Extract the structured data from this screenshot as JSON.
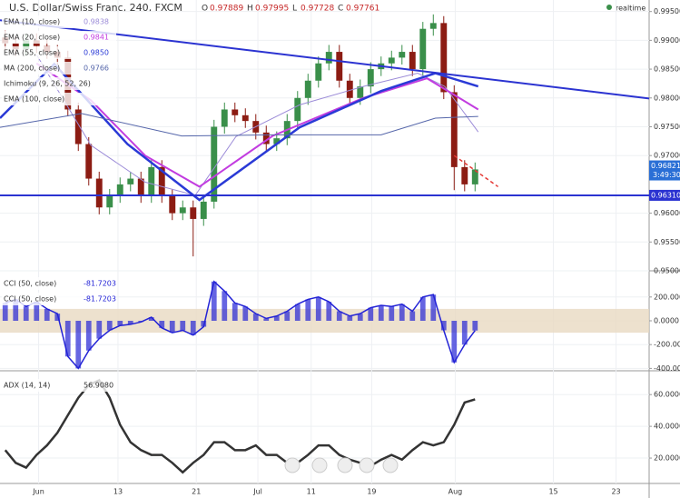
{
  "chart_data": [
    {
      "type": "candlestick",
      "title": "U.S. Dollar/Swiss Franc, 240, FXCM",
      "ohlc": [
        {
          "label": "O",
          "value": 0.97889
        },
        {
          "label": "H",
          "value": 0.97995
        },
        {
          "label": "L",
          "value": 0.97728
        },
        {
          "label": "C",
          "value": 0.97761
        }
      ],
      "realtime": "realtime",
      "up_color": "#3a8f4a",
      "down_color": "#8c1c13",
      "x": [
        0,
        1,
        2,
        3,
        4,
        5,
        6,
        7,
        8,
        9,
        10,
        11,
        12,
        13,
        14,
        15,
        16,
        17,
        18,
        19,
        20,
        21,
        22,
        23,
        24,
        25,
        26,
        27,
        28,
        29,
        30,
        31,
        32,
        33,
        34,
        35,
        36,
        37,
        38,
        39,
        40,
        41,
        42,
        43,
        44,
        45
      ],
      "open": [
        0.9905,
        0.9895,
        0.9885,
        0.99,
        0.989,
        0.988,
        0.987,
        0.978,
        0.972,
        0.966,
        0.961,
        0.963,
        0.965,
        0.966,
        0.963,
        0.968,
        0.963,
        0.96,
        0.961,
        0.959,
        0.962,
        0.975,
        0.978,
        0.977,
        0.976,
        0.974,
        0.972,
        0.973,
        0.976,
        0.98,
        0.983,
        0.986,
        0.988,
        0.983,
        0.98,
        0.982,
        0.985,
        0.986,
        0.987,
        0.988,
        0.985,
        0.992,
        0.993,
        0.981,
        0.968,
        0.965
      ],
      "high": [
        0.9917,
        0.9907,
        0.9912,
        0.9912,
        0.9902,
        0.9892,
        0.9882,
        0.9792,
        0.9732,
        0.9672,
        0.9642,
        0.9662,
        0.9672,
        0.9672,
        0.9692,
        0.9692,
        0.9642,
        0.9622,
        0.9622,
        0.9632,
        0.9762,
        0.9792,
        0.9792,
        0.9782,
        0.9772,
        0.9752,
        0.9742,
        0.9772,
        0.9812,
        0.9842,
        0.9872,
        0.9892,
        0.9892,
        0.9842,
        0.9832,
        0.9862,
        0.9872,
        0.9882,
        0.9892,
        0.9892,
        0.9932,
        0.9945,
        0.9942,
        0.9822,
        0.9692,
        0.9688
      ],
      "low": [
        0.9883,
        0.9873,
        0.9873,
        0.9878,
        0.9868,
        0.9858,
        0.9768,
        0.9708,
        0.9648,
        0.9598,
        0.9598,
        0.9618,
        0.9638,
        0.9618,
        0.9618,
        0.9618,
        0.9588,
        0.9588,
        0.9525,
        0.9578,
        0.9608,
        0.9738,
        0.9758,
        0.9748,
        0.9728,
        0.9708,
        0.9708,
        0.9718,
        0.9748,
        0.9788,
        0.9818,
        0.9848,
        0.9818,
        0.9788,
        0.9788,
        0.9808,
        0.9838,
        0.9848,
        0.9858,
        0.9838,
        0.9838,
        0.9908,
        0.9798,
        0.964,
        0.9638,
        0.9638
      ],
      "close": [
        0.9895,
        0.9885,
        0.99,
        0.989,
        0.988,
        0.987,
        0.978,
        0.972,
        0.966,
        0.961,
        0.963,
        0.965,
        0.966,
        0.963,
        0.968,
        0.963,
        0.96,
        0.961,
        0.959,
        0.962,
        0.975,
        0.978,
        0.977,
        0.976,
        0.974,
        0.972,
        0.973,
        0.976,
        0.98,
        0.983,
        0.986,
        0.988,
        0.983,
        0.98,
        0.982,
        0.985,
        0.986,
        0.987,
        0.988,
        0.985,
        0.992,
        0.993,
        0.981,
        0.968,
        0.965,
        0.9676
      ],
      "series": [
        {
          "name": "EMA (10, close)",
          "reading": "0.9838",
          "color": "#9c8cd8",
          "width": 1,
          "x": [
            3,
            8.2,
            13.4,
            18.2,
            22.1,
            28.2,
            34.3,
            39.5,
            42.1,
            45.3
          ],
          "values": [
            0.9875,
            0.9718,
            0.9654,
            0.9631,
            0.9733,
            0.9788,
            0.982,
            0.9843,
            0.982,
            0.9741
          ]
        },
        {
          "name": "EMA (20, close)",
          "reading": "0.9841",
          "color": "#c23ce0",
          "width": 2,
          "x": [
            3,
            8.2,
            13.4,
            18.6,
            25.6,
            34.3,
            40.4,
            45.3
          ],
          "values": [
            0.986,
            0.9796,
            0.97,
            0.9646,
            0.9734,
            0.98,
            0.9834,
            0.978
          ]
        },
        {
          "name": "EMA (55, close)",
          "reading": "0.9850",
          "color": "#2a3ad6",
          "width": 2.5,
          "x": [
            -0.5,
            4.7,
            11.7,
            18.6,
            28.2,
            36,
            41.2,
            45.3
          ],
          "values": [
            0.9765,
            0.9859,
            0.972,
            0.9623,
            0.9749,
            0.9812,
            0.9843,
            0.982
          ]
        },
        {
          "name": "MA (200, close)",
          "reading": "0.9766",
          "color": "#5566aa",
          "width": 1,
          "x": [
            -0.5,
            7.3,
            16.9,
            25.6,
            36,
            41.2,
            45.3
          ],
          "values": [
            0.9749,
            0.9773,
            0.9734,
            0.9736,
            0.9736,
            0.9765,
            0.9768
          ]
        }
      ],
      "extra_indicators": [
        "Ichimoku (9, 26, 52, 26)",
        "EMA (100, close)"
      ],
      "trendlines": [
        {
          "color": "#2b33d1",
          "dashed": false,
          "x": [
            -0.5,
            61.67
          ],
          "y": [
            0.9935,
            0.9799
          ]
        },
        {
          "color": "#e53935",
          "dashed": true,
          "x": [
            43,
            47.2
          ],
          "y": [
            0.97,
            0.9646
          ]
        }
      ],
      "hline": {
        "value": 0.9631,
        "label": "0.96310",
        "color": "#2b33d1"
      },
      "last_price": 0.96821,
      "countdown": "3:49:30",
      "xlim": [
        -0.5,
        61.67
      ],
      "ylim": [
        0.95,
        0.997
      ],
      "yticks": [
        {
          "value": 0.995,
          "label": "0.99500"
        },
        {
          "value": 0.99,
          "label": "0.99000"
        },
        {
          "value": 0.985,
          "label": "0.98500"
        },
        {
          "value": 0.98,
          "label": "0.98000"
        },
        {
          "value": 0.975,
          "label": "0.97500"
        },
        {
          "value": 0.97,
          "label": "0.97000"
        },
        {
          "value": 0.96,
          "label": "0.96000"
        },
        {
          "value": 0.955,
          "label": "0.95500"
        },
        {
          "value": 0.95,
          "label": "0.95000"
        }
      ]
    },
    {
      "type": "cci",
      "indicators": [
        {
          "name": "CCI (50, close)",
          "reading": "-81.7203"
        },
        {
          "name": "CCI (50, close)",
          "reading": "-81.7203"
        }
      ],
      "color": "#2323d6",
      "band": [
        -100,
        100
      ],
      "band_color": "#e8d9c2",
      "x": [
        0,
        1,
        2,
        3,
        4,
        5,
        6,
        7,
        8,
        9,
        10,
        11,
        12,
        13,
        14,
        15,
        16,
        17,
        18,
        19,
        20,
        21,
        22,
        23,
        24,
        25,
        26,
        27,
        28,
        29,
        30,
        31,
        32,
        33,
        34,
        35,
        36,
        37,
        38,
        39,
        40,
        41,
        42,
        43,
        44,
        45
      ],
      "values": [
        150,
        180,
        120,
        160,
        100,
        60,
        -300,
        -400,
        -250,
        -150,
        -80,
        -40,
        -30,
        -10,
        30,
        -60,
        -100,
        -80,
        -120,
        -50,
        330,
        250,
        150,
        120,
        60,
        20,
        40,
        80,
        140,
        180,
        200,
        160,
        80,
        40,
        60,
        110,
        130,
        120,
        140,
        80,
        200,
        220,
        -80,
        -350,
        -200,
        -82
      ],
      "xlim": [
        -0.5,
        61.67
      ],
      "ylim": [
        -420,
        420
      ],
      "yticks": [
        {
          "value": 200,
          "label": "200.0000"
        },
        {
          "value": 0,
          "label": "0.0000"
        },
        {
          "value": -200,
          "label": "-200.0000"
        },
        {
          "value": -400,
          "label": "-400.0000"
        }
      ]
    },
    {
      "type": "line",
      "indicators": [
        {
          "name": "ADX (14, 14)",
          "reading": "56.9080"
        }
      ],
      "color": "#333333",
      "x": [
        0,
        1,
        2,
        3,
        4,
        5,
        6,
        7,
        8,
        9,
        10,
        11,
        12,
        13,
        14,
        15,
        16,
        17,
        18,
        19,
        20,
        21,
        22,
        23,
        24,
        25,
        26,
        27,
        28,
        29,
        30,
        31,
        32,
        33,
        34,
        35,
        36,
        37,
        38,
        39,
        40,
        41,
        42,
        43,
        44,
        45
      ],
      "values": [
        25,
        17,
        14,
        22,
        28,
        36,
        47,
        58,
        66,
        69,
        58,
        41,
        30,
        25,
        22,
        22,
        17,
        11,
        17,
        22,
        30,
        30,
        25,
        25,
        28,
        22,
        22,
        17,
        17,
        22,
        28,
        28,
        22,
        19,
        17,
        15,
        19,
        22,
        19,
        25,
        30,
        28,
        30,
        41,
        55,
        57
      ],
      "xlim": [
        -0.5,
        61.67
      ],
      "ylim": [
        4,
        75
      ],
      "yticks": [
        {
          "value": 60,
          "label": "60.0000"
        },
        {
          "value": 40,
          "label": "40.0000"
        },
        {
          "value": 20,
          "label": "20.0000"
        }
      ],
      "xticks": [
        {
          "value": 3.2,
          "label": "Jun"
        },
        {
          "value": 10.8,
          "label": "13"
        },
        {
          "value": 18.3,
          "label": "21"
        },
        {
          "value": 24.2,
          "label": "Jul"
        },
        {
          "value": 29.3,
          "label": "11"
        },
        {
          "value": 35.1,
          "label": "19"
        },
        {
          "value": 43.1,
          "label": "Aug"
        },
        {
          "value": 52.5,
          "label": "15"
        },
        {
          "value": 58.5,
          "label": "23"
        }
      ]
    }
  ]
}
